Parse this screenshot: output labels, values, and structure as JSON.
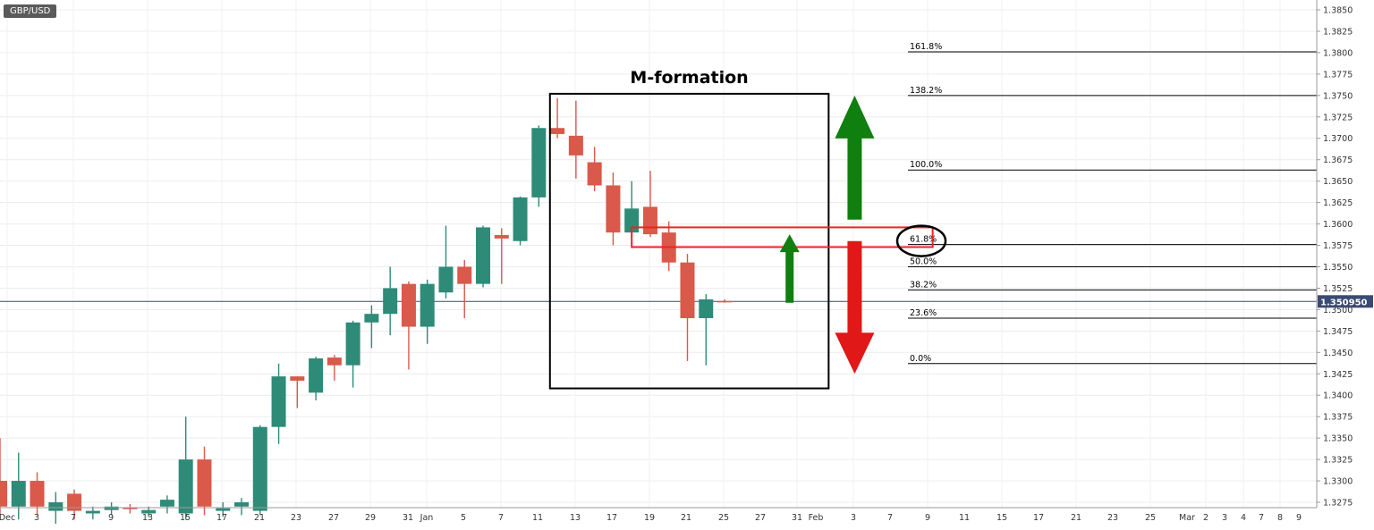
{
  "symbol": "GBP/USD",
  "chart_data": {
    "type": "candlestick",
    "title": "GBP/USD",
    "annotation_title": "M-formation",
    "last_price_label": "1.350950",
    "last_price": 1.35095,
    "ylim": [
      1.327,
      1.3862
    ],
    "y_ticks": [
      "1.3275",
      "1.3300",
      "1.3325",
      "1.3350",
      "1.3375",
      "1.3400",
      "1.3425",
      "1.3450",
      "1.3475",
      "1.3500",
      "1.3525",
      "1.3550",
      "1.3575",
      "1.3600",
      "1.3625",
      "1.3650",
      "1.3675",
      "1.3700",
      "1.3725",
      "1.3750",
      "1.3775",
      "1.3800",
      "1.3825",
      "1.3850"
    ],
    "x_labels": [
      "Dec",
      "3",
      "7",
      "9",
      "13",
      "15",
      "17",
      "21",
      "23",
      "27",
      "29",
      "31",
      "Jan",
      "5",
      "7",
      "11",
      "13",
      "17",
      "19",
      "21",
      "25",
      "27",
      "31",
      "Feb",
      "3",
      "7",
      "9",
      "11",
      "15",
      "17",
      "21",
      "23",
      "25",
      "Mar",
      "2",
      "3",
      "4",
      "7",
      "8",
      "9"
    ],
    "candles": [
      {
        "o": 1.33,
        "h": 1.335,
        "l": 1.326,
        "c": 1.327
      },
      {
        "o": 1.327,
        "h": 1.3333,
        "l": 1.3255,
        "c": 1.33
      },
      {
        "o": 1.33,
        "h": 1.331,
        "l": 1.326,
        "c": 1.327
      },
      {
        "o": 1.3265,
        "h": 1.3287,
        "l": 1.325,
        "c": 1.3275
      },
      {
        "o": 1.3285,
        "h": 1.329,
        "l": 1.3255,
        "c": 1.3265
      },
      {
        "o": 1.3262,
        "h": 1.327,
        "l": 1.3255,
        "c": 1.3265
      },
      {
        "o": 1.3266,
        "h": 1.3275,
        "l": 1.326,
        "c": 1.327
      },
      {
        "o": 1.3269,
        "h": 1.3273,
        "l": 1.3262,
        "c": 1.3267
      },
      {
        "o": 1.3262,
        "h": 1.327,
        "l": 1.3258,
        "c": 1.3266
      },
      {
        "o": 1.327,
        "h": 1.3283,
        "l": 1.3262,
        "c": 1.3278
      },
      {
        "o": 1.3262,
        "h": 1.3375,
        "l": 1.3255,
        "c": 1.3325
      },
      {
        "o": 1.3325,
        "h": 1.334,
        "l": 1.326,
        "c": 1.327
      },
      {
        "o": 1.3265,
        "h": 1.3275,
        "l": 1.3258,
        "c": 1.3268
      },
      {
        "o": 1.327,
        "h": 1.328,
        "l": 1.326,
        "c": 1.3275
      },
      {
        "o": 1.3265,
        "h": 1.3365,
        "l": 1.326,
        "c": 1.3363
      },
      {
        "o": 1.3363,
        "h": 1.3437,
        "l": 1.3343,
        "c": 1.3422
      },
      {
        "o": 1.3422,
        "h": 1.3422,
        "l": 1.3385,
        "c": 1.3417
      },
      {
        "o": 1.3403,
        "h": 1.3445,
        "l": 1.3394,
        "c": 1.3443
      },
      {
        "o": 1.3444,
        "h": 1.3447,
        "l": 1.3417,
        "c": 1.3435
      },
      {
        "o": 1.3435,
        "h": 1.3487,
        "l": 1.3409,
        "c": 1.3485
      },
      {
        "o": 1.3485,
        "h": 1.3505,
        "l": 1.3455,
        "c": 1.3495
      },
      {
        "o": 1.3495,
        "h": 1.355,
        "l": 1.347,
        "c": 1.3525
      },
      {
        "o": 1.353,
        "h": 1.3533,
        "l": 1.343,
        "c": 1.348
      },
      {
        "o": 1.348,
        "h": 1.3535,
        "l": 1.346,
        "c": 1.353
      },
      {
        "o": 1.352,
        "h": 1.3598,
        "l": 1.3513,
        "c": 1.355
      },
      {
        "o": 1.355,
        "h": 1.3558,
        "l": 1.349,
        "c": 1.353
      },
      {
        "o": 1.353,
        "h": 1.3598,
        "l": 1.3526,
        "c": 1.3596
      },
      {
        "o": 1.3587,
        "h": 1.3595,
        "l": 1.353,
        "c": 1.3583
      },
      {
        "o": 1.358,
        "h": 1.3632,
        "l": 1.3575,
        "c": 1.3631
      },
      {
        "o": 1.3631,
        "h": 1.3715,
        "l": 1.362,
        "c": 1.3712
      },
      {
        "o": 1.3712,
        "h": 1.3747,
        "l": 1.37,
        "c": 1.3705
      },
      {
        "o": 1.3703,
        "h": 1.3744,
        "l": 1.3653,
        "c": 1.368
      },
      {
        "o": 1.3672,
        "h": 1.369,
        "l": 1.3638,
        "c": 1.3645
      },
      {
        "o": 1.3645,
        "h": 1.366,
        "l": 1.3575,
        "c": 1.359
      },
      {
        "o": 1.359,
        "h": 1.365,
        "l": 1.3585,
        "c": 1.3618
      },
      {
        "o": 1.362,
        "h": 1.3662,
        "l": 1.3585,
        "c": 1.3588
      },
      {
        "o": 1.359,
        "h": 1.3603,
        "l": 1.3545,
        "c": 1.3555
      },
      {
        "o": 1.3555,
        "h": 1.3565,
        "l": 1.344,
        "c": 1.349
      },
      {
        "o": 1.349,
        "h": 1.3518,
        "l": 1.3435,
        "c": 1.3512
      },
      {
        "o": 1.351,
        "h": 1.3512,
        "l": 1.3508,
        "c": 1.3509
      }
    ],
    "fib_levels": [
      {
        "label": "161.8%",
        "value": 1.3801
      },
      {
        "label": "138.2%",
        "value": 1.375
      },
      {
        "label": "100.0%",
        "value": 1.3663
      },
      {
        "label": "61.8%",
        "value": 1.3576
      },
      {
        "label": "50.0%",
        "value": 1.355
      },
      {
        "label": "38.2%",
        "value": 1.3523
      },
      {
        "label": "23.6%",
        "value": 1.349
      },
      {
        "label": "0.0%",
        "value": 1.3437
      }
    ],
    "m_box": {
      "from_candle": 29.6,
      "to_candle": 44.6,
      "top": 1.3752,
      "bottom": 1.3408
    },
    "resistance_zone": {
      "from_candle": 34.0,
      "to_candle": 50.2,
      "top": 1.3596,
      "bottom": 1.3573
    },
    "small_arrow": {
      "at_candle": 42.5,
      "from": 1.3508,
      "to": 1.3588
    },
    "up_arrow": {
      "at_candle": 46.0,
      "from": 1.3605,
      "to": 1.375
    },
    "down_arrow": {
      "at_candle": 46.0,
      "from": 1.358,
      "to": 1.3425
    },
    "circled_level": "61.8%",
    "colors": {
      "bull": "#2e8b78",
      "bear": "#d9594a",
      "fib": "#000000",
      "arrow_up": "#0f7f0f",
      "arrow_down": "#e01818",
      "zone": "#ee2222",
      "price_tag": "#3b4a72"
    }
  }
}
